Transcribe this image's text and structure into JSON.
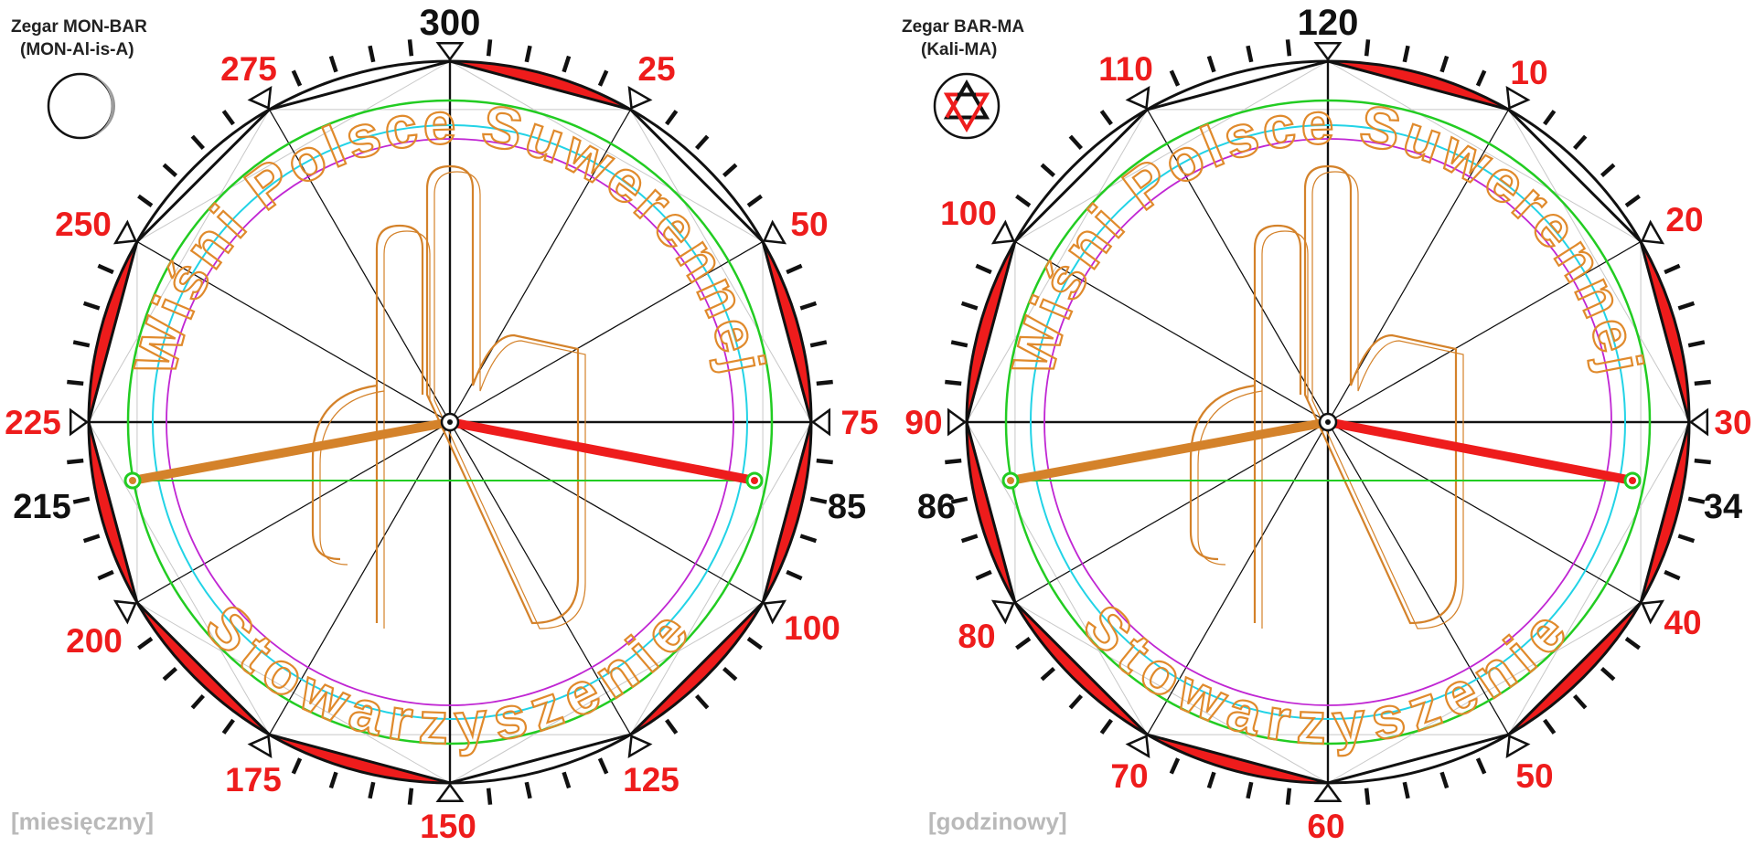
{
  "clocks": [
    {
      "id": "monthly",
      "title_line1": "Zegar MON-BAR",
      "title_line2": "(MON-Al-is-A)",
      "caption": "[miesięczny]",
      "icon": "moon-phase-icon",
      "top_label": "300",
      "red_labels": [
        "25",
        "50",
        "75",
        "100",
        "125",
        "150",
        "175",
        "200",
        "225",
        "250",
        "275"
      ],
      "hand_left_label": "215",
      "hand_right_label": "85",
      "motto_top": "Wiśni Polsce Suwerennej",
      "motto_bottom": "Stowarzyszenie"
    },
    {
      "id": "hourly",
      "title_line1": "Zegar BAR-MA",
      "title_line2": "(Kali-MA)",
      "caption": "[godzinowy]",
      "icon": "hexagram-icon",
      "top_label": "120",
      "red_labels": [
        "10",
        "20",
        "30",
        "40",
        "50",
        "60",
        "70",
        "80",
        "90",
        "100",
        "110"
      ],
      "hand_left_label": "86",
      "hand_right_label": "34",
      "motto_top": "Wiśni Polsce Suwerennej",
      "motto_bottom": "Stowarzyszenie"
    }
  ],
  "colors": {
    "red": "#ee1c1c",
    "orange": "#d4822a",
    "green": "#22cc22",
    "cyan": "#22d3e6",
    "magenta": "#c026d3",
    "black": "#111111"
  }
}
